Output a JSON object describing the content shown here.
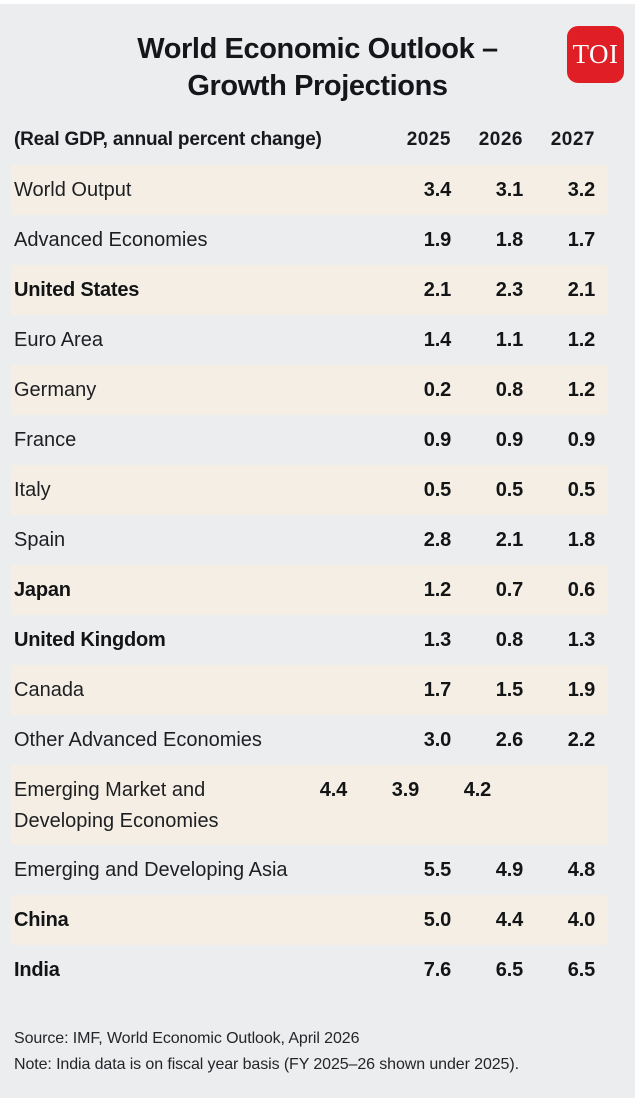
{
  "brand": {
    "logo_text": "TOI",
    "logo_color": "#e01e25"
  },
  "title": {
    "line1": "World Economic Outlook –",
    "line2": "Growth Projections"
  },
  "colors": {
    "background": "#ecedef",
    "row_stripe": "#f5eee4",
    "logo_red": "#e01e25",
    "text": "#1a1c1f"
  },
  "table": {
    "unit_label": "(Real GDP, annual percent change)",
    "years": [
      "2025",
      "2026",
      "2027"
    ],
    "rows": [
      {
        "label": "World Output",
        "values": [
          "3.4",
          "3.1",
          "3.2"
        ],
        "bold": false,
        "shaded": true,
        "tall": false
      },
      {
        "label": "Advanced Economies",
        "values": [
          "1.9",
          "1.8",
          "1.7"
        ],
        "bold": false,
        "shaded": false,
        "tall": false
      },
      {
        "label": "United States",
        "values": [
          "2.1",
          "2.3",
          "2.1"
        ],
        "bold": true,
        "shaded": true,
        "tall": false
      },
      {
        "label": "Euro Area",
        "values": [
          "1.4",
          "1.1",
          "1.2"
        ],
        "bold": false,
        "shaded": false,
        "tall": false
      },
      {
        "label": "Germany",
        "values": [
          "0.2",
          "0.8",
          "1.2"
        ],
        "bold": false,
        "shaded": true,
        "tall": false
      },
      {
        "label": "France",
        "values": [
          "0.9",
          "0.9",
          "0.9"
        ],
        "bold": false,
        "shaded": false,
        "tall": false
      },
      {
        "label": "Italy",
        "values": [
          "0.5",
          "0.5",
          "0.5"
        ],
        "bold": false,
        "shaded": true,
        "tall": false
      },
      {
        "label": "Spain",
        "values": [
          "2.8",
          "2.1",
          "1.8"
        ],
        "bold": false,
        "shaded": false,
        "tall": false
      },
      {
        "label": "Japan",
        "values": [
          "1.2",
          "0.7",
          "0.6"
        ],
        "bold": true,
        "shaded": true,
        "tall": false
      },
      {
        "label": "United Kingdom",
        "values": [
          "1.3",
          "0.8",
          "1.3"
        ],
        "bold": true,
        "shaded": false,
        "tall": false
      },
      {
        "label": "Canada",
        "values": [
          "1.7",
          "1.5",
          "1.9"
        ],
        "bold": false,
        "shaded": true,
        "tall": false
      },
      {
        "label": "Other Advanced Economies",
        "values": [
          "3.0",
          "2.6",
          "2.2"
        ],
        "bold": false,
        "shaded": false,
        "tall": false
      },
      {
        "label": "Emerging Market and Developing Economies",
        "values": [
          "4.4",
          "3.9",
          "4.2"
        ],
        "bold": false,
        "shaded": true,
        "tall": true
      },
      {
        "label": "Emerging and Developing Asia",
        "values": [
          "5.5",
          "4.9",
          "4.8"
        ],
        "bold": false,
        "shaded": false,
        "tall": false
      },
      {
        "label": "China",
        "values": [
          "5.0",
          "4.4",
          "4.0"
        ],
        "bold": true,
        "shaded": true,
        "tall": false
      },
      {
        "label": "India",
        "values": [
          "7.6",
          "6.5",
          "6.5"
        ],
        "bold": true,
        "shaded": false,
        "tall": false
      }
    ]
  },
  "footer": {
    "source": "Source: IMF, World Economic Outlook, April 2026",
    "note": "Note: India data is on fiscal year basis (FY 2025–26 shown under 2025)."
  },
  "chart_data": {
    "type": "table",
    "title": "World Economic Outlook – Growth Projections",
    "subtitle": "(Real GDP, annual percent change)",
    "columns": [
      "2025",
      "2026",
      "2027"
    ],
    "categories": [
      "World Output",
      "Advanced Economies",
      "United States",
      "Euro Area",
      "Germany",
      "France",
      "Italy",
      "Spain",
      "Japan",
      "United Kingdom",
      "Canada",
      "Other Advanced Economies",
      "Emerging Market and Developing Economies",
      "Emerging and Developing Asia",
      "China",
      "India"
    ],
    "series": [
      {
        "name": "2025",
        "values": [
          3.4,
          1.9,
          2.1,
          1.4,
          0.2,
          0.9,
          0.5,
          2.8,
          1.2,
          1.3,
          1.7,
          3.0,
          4.4,
          5.5,
          5.0,
          7.6
        ]
      },
      {
        "name": "2026",
        "values": [
          3.1,
          1.8,
          2.3,
          1.1,
          0.8,
          0.9,
          0.5,
          2.1,
          0.7,
          0.8,
          1.5,
          2.6,
          3.9,
          4.9,
          4.4,
          6.5
        ]
      },
      {
        "name": "2027",
        "values": [
          3.2,
          1.7,
          2.1,
          1.2,
          1.2,
          0.9,
          0.5,
          1.8,
          0.6,
          1.3,
          1.9,
          2.2,
          4.2,
          4.8,
          4.0,
          6.5
        ]
      }
    ],
    "source_note": "Source: IMF, World Economic Outlook, April 2026",
    "footnote": "Note: India data is on fiscal year basis (FY 2025–26 shown under 2025)."
  }
}
